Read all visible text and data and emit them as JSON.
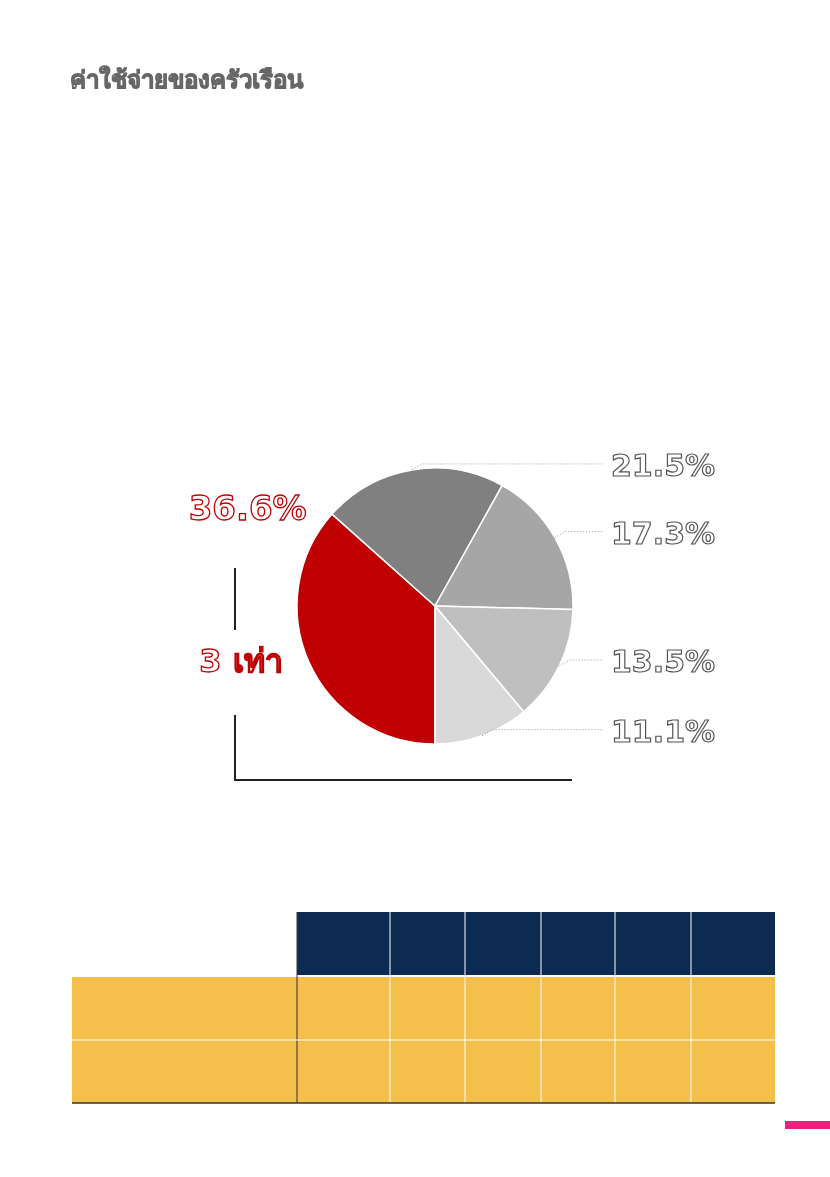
{
  "chart_data": {
    "type": "pie",
    "title": "ค่าใช้จ่ายของครัวเรือน",
    "categories": [
      null,
      null,
      null,
      null,
      null
    ],
    "values": [
      36.6,
      21.5,
      17.3,
      13.5,
      11.1
    ],
    "colors": [
      "#c00000",
      "#808080",
      "#a6a6a6",
      "#bfbfbf",
      "#d9d9d9"
    ],
    "value_labels": [
      "36.6%",
      "21.5%",
      "17.3%",
      "13.5%",
      "11.1%"
    ],
    "annotations": [
      "3 เท่า"
    ]
  }
}
